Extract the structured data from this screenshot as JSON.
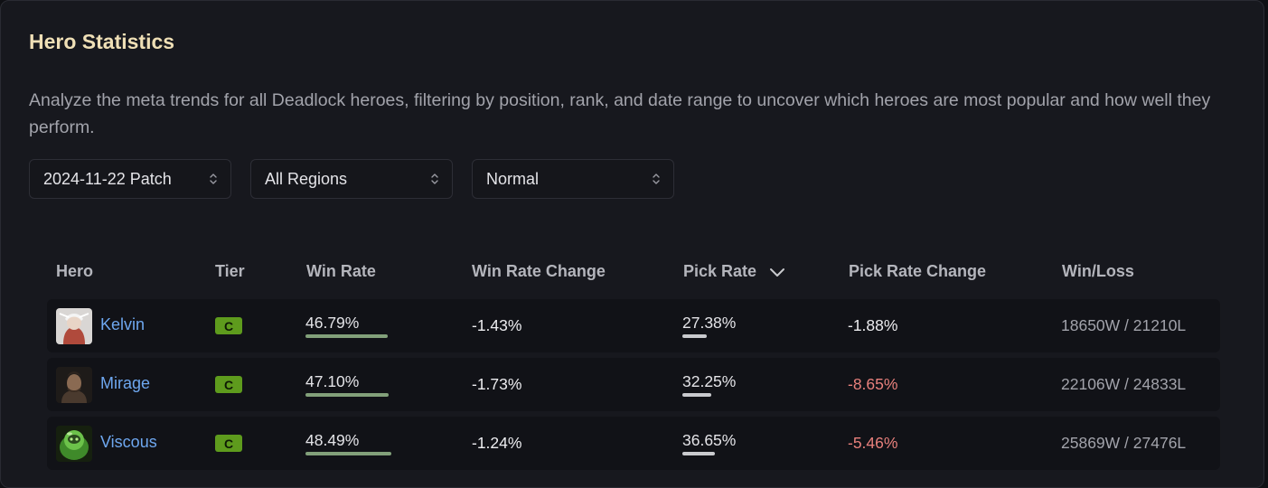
{
  "title": "Hero Statistics",
  "description": "Analyze the meta trends for all Deadlock heroes, filtering by position, rank, and date range to uncover which heroes are most popular and how well they perform.",
  "filters": {
    "patch": "2024-11-22 Patch",
    "region": "All Regions",
    "mode": "Normal"
  },
  "table": {
    "headers": {
      "hero": "Hero",
      "tier": "Tier",
      "win_rate": "Win Rate",
      "win_rate_change": "Win Rate Change",
      "pick_rate": "Pick Rate",
      "pick_rate_change": "Pick Rate Change",
      "win_loss": "Win/Loss"
    },
    "sorted_by": "pick_rate",
    "rows": [
      {
        "hero": "Kelvin",
        "tier": "C",
        "win_rate": "46.79%",
        "win_rate_fraction": 0.4679,
        "win_rate_change": "-1.43%",
        "pick_rate": "27.38%",
        "pick_rate_fraction": 0.2738,
        "pick_rate_change": "-1.88%",
        "pick_rate_change_tone": "neutral",
        "win_loss": "18650W / 21210L"
      },
      {
        "hero": "Mirage",
        "tier": "C",
        "win_rate": "47.10%",
        "win_rate_fraction": 0.471,
        "win_rate_change": "-1.73%",
        "pick_rate": "32.25%",
        "pick_rate_fraction": 0.3225,
        "pick_rate_change": "-8.65%",
        "pick_rate_change_tone": "negative",
        "win_loss": "22106W / 24833L"
      },
      {
        "hero": "Viscous",
        "tier": "C",
        "win_rate": "48.49%",
        "win_rate_fraction": 0.4849,
        "win_rate_change": "-1.24%",
        "pick_rate": "36.65%",
        "pick_rate_fraction": 0.3665,
        "pick_rate_change": "-5.46%",
        "pick_rate_change_tone": "negative",
        "win_loss": "25869W / 27476L"
      }
    ]
  },
  "colors": {
    "title": "#efdfb6",
    "hero_link": "#6ea7ef",
    "tier_c": "#5e9b1d",
    "win_rate_bar": "#82a07a",
    "pick_rate_bar": "#c9cace",
    "negative_change": "#e8807c"
  },
  "icons": {
    "select": "chevron-up-down-icon",
    "sort": "chevron-down-icon"
  }
}
